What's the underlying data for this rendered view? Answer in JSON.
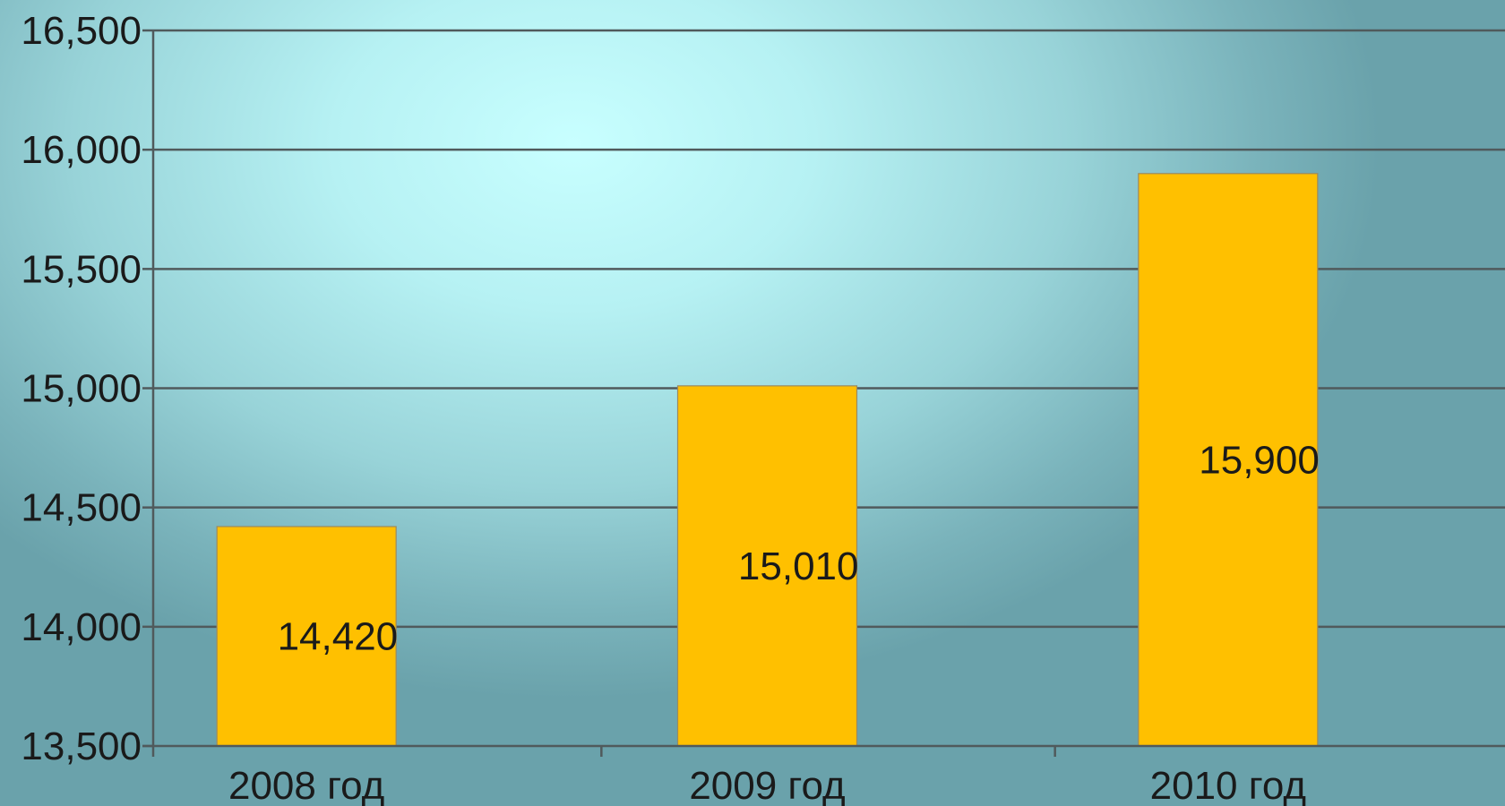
{
  "chart_data": {
    "type": "bar",
    "categories": [
      "2008 год",
      "2009 год",
      "2010 год"
    ],
    "values": [
      14420,
      15010,
      15900
    ],
    "data_labels": [
      "14,420",
      "15,010",
      "15,900"
    ],
    "y_ticks": [
      13500,
      14000,
      14500,
      15000,
      15500,
      16000,
      16500
    ],
    "y_tick_labels": [
      "13,500",
      "14,000",
      "14,500",
      "15,000",
      "15,500",
      "16,000",
      "16,500"
    ],
    "ylim": [
      13500,
      16500
    ],
    "grid": true,
    "legend": "none",
    "bar_color": "#ffc000",
    "gridline_color": "#505a5c"
  }
}
